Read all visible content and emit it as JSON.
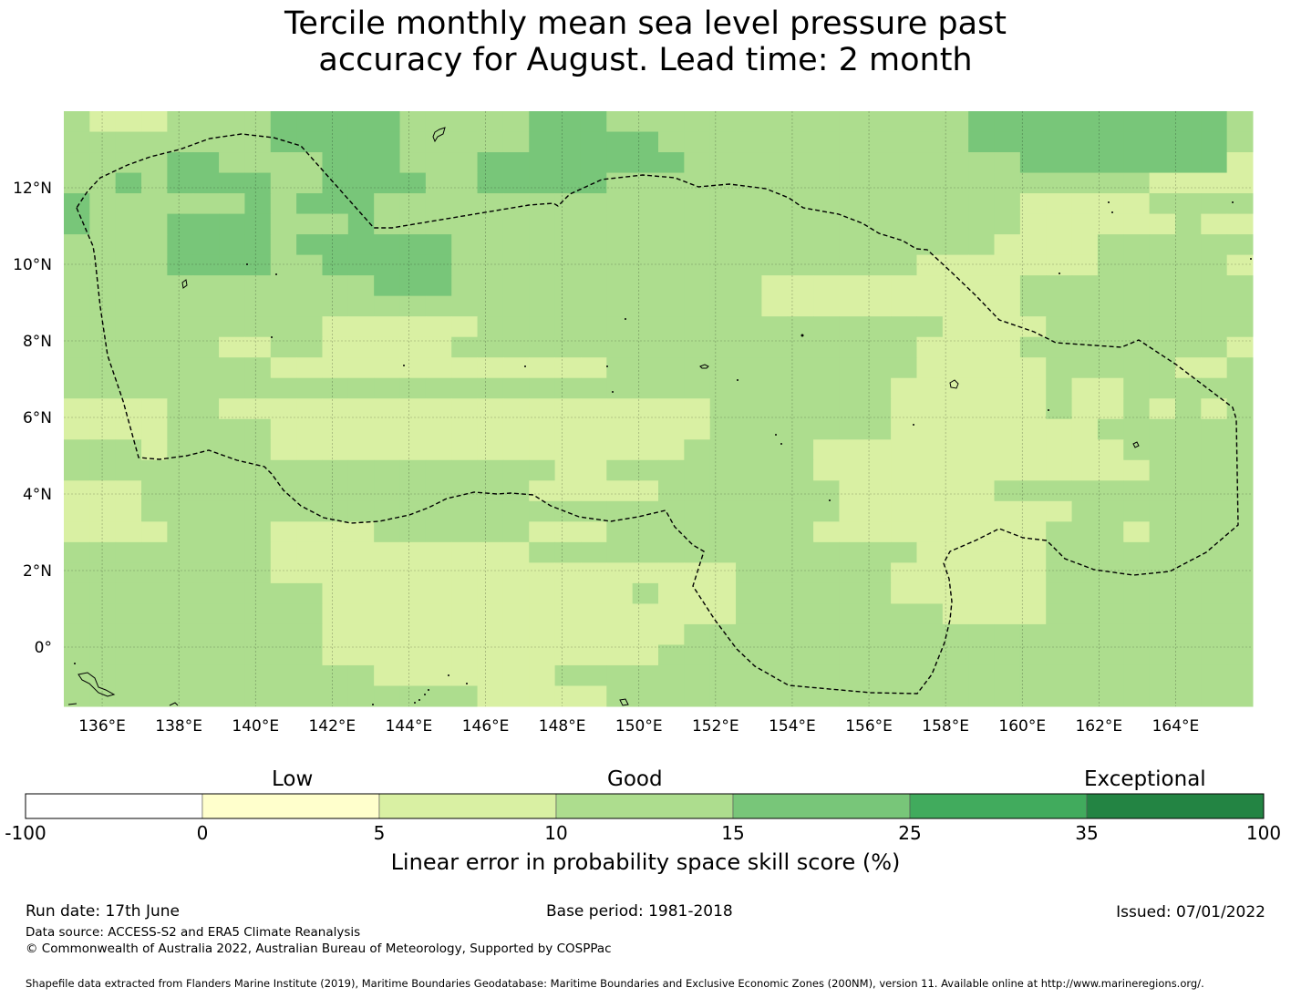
{
  "title": {
    "line1": "Tercile monthly mean sea level pressure past",
    "line2": "accuracy for August. Lead time: 2 month"
  },
  "map": {
    "lon_range": [
      135,
      166
    ],
    "lat_range": [
      -1.5,
      14
    ],
    "lon_ticks": [
      "136°E",
      "138°E",
      "140°E",
      "142°E",
      "144°E",
      "146°E",
      "148°E",
      "150°E",
      "152°E",
      "154°E",
      "156°E",
      "158°E",
      "160°E",
      "162°E",
      "164°E"
    ],
    "lat_ticks": [
      "12°N",
      "10°N",
      "8°N",
      "6°N",
      "4°N",
      "2°N",
      "0°"
    ],
    "grid": true,
    "eez_boundary": "dashed"
  },
  "colorbar": {
    "categories": [
      "Low",
      "Good",
      "Exceptional"
    ],
    "ticks": [
      "-100",
      "0",
      "5",
      "10",
      "15",
      "25",
      "35",
      "100"
    ],
    "colors": [
      "#ffffff",
      "#ffffcc",
      "#d9f0a3",
      "#addd8e",
      "#78c679",
      "#41ab5d",
      "#238443"
    ],
    "label": "Linear error in probability space skill score (%)"
  },
  "footer": {
    "run_date": "Run date: 17th June",
    "base_period": "Base period: 1981-2018",
    "issued": "Issued: 07/01/2022",
    "data_source": "Data source: ACCESS-S2 and ERA5 Climate Reanalysis",
    "copyright": "© Commonwealth of Australia 2022, Australian Bureau of Meteorology, Supported by COSPPac",
    "shapefile": "Shapefile data extracted from Flanders Marine Institute (2019), Maritime Boundaries Geodatabase: Maritime Boundaries and Exclusive Economic Zones (200NM), version 11. Available online at http://www.marineregions.org/."
  }
}
